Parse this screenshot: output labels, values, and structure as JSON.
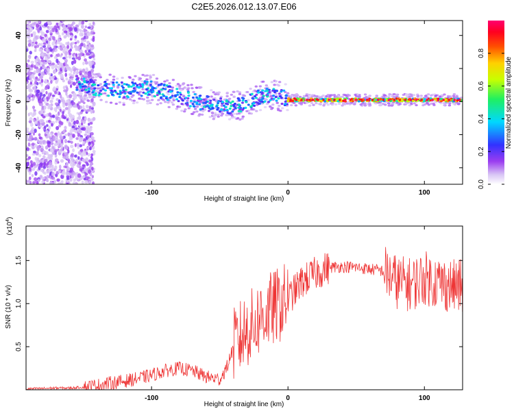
{
  "figure": {
    "title": "C2E5.2026.012.13.07.E06"
  },
  "chart_data": [
    {
      "type": "heatmap",
      "title": "C2E5.2026.012.13.07.E06",
      "xlabel": "Height of straight line (km)",
      "ylabel": "Frequency (Hz)",
      "xlim": [
        -192,
        128
      ],
      "ylim": [
        -50,
        49
      ],
      "xticks": [
        -100,
        0,
        100
      ],
      "yticks": [
        -40,
        -20,
        0,
        20,
        40
      ],
      "xtick_labels": [
        "-100",
        "0",
        "100"
      ],
      "ytick_labels": [
        "-40",
        "-20",
        "0",
        "20",
        "40"
      ],
      "ridge": {
        "x": [
          -155,
          -140,
          -120,
          -100,
          -90,
          -80,
          -70,
          -60,
          -50,
          -40,
          -30,
          -25,
          -20,
          -15,
          -10,
          -5,
          0,
          20,
          60,
          100,
          128
        ],
        "y": [
          11,
          8,
          7,
          8,
          6,
          3,
          1,
          -1,
          -2,
          -3,
          -1,
          1,
          3,
          4,
          4,
          3,
          1,
          1,
          1,
          1,
          1
        ]
      },
      "colorbar": {
        "label": "Normalized spectral amplitude",
        "range": [
          0,
          1
        ],
        "ticks": [
          0.0,
          0.2,
          0.4,
          0.6,
          0.8
        ],
        "tick_labels": [
          "0.0",
          "0.2",
          "0.4",
          "0.6",
          "0.8"
        ],
        "colors": [
          "#ffffff",
          "#c7a7f0",
          "#8a2be2",
          "#1e46ff",
          "#00e0ff",
          "#20ff40",
          "#ffff00",
          "#ff8000",
          "#ff0000",
          "#ff0060"
        ]
      }
    },
    {
      "type": "line",
      "xlabel": "Height of straight line (km)",
      "ylabel": "SNR (10 * v/v)",
      "multiplier_label": "(x10",
      "multiplier_exp": "4",
      "multiplier_close": ")",
      "xlim": [
        -192,
        128
      ],
      "ylim": [
        0,
        1.9
      ],
      "xticks": [
        -100,
        0,
        100
      ],
      "yticks": [
        0.5,
        1.0,
        1.5
      ],
      "xtick_labels": [
        "-100",
        "0",
        "100"
      ],
      "ytick_labels": [
        "0.5",
        "1.0",
        "1.5"
      ],
      "series": [
        {
          "name": "SNR",
          "color": "#ee3333",
          "x": [
            -192,
            -170,
            -160,
            -150,
            -140,
            -130,
            -120,
            -110,
            -100,
            -90,
            -80,
            -70,
            -60,
            -50,
            -45,
            -40,
            -35,
            -30,
            -25,
            -20,
            -15,
            -10,
            -5,
            0,
            5,
            10,
            20,
            30,
            40,
            50,
            60,
            70,
            80,
            90,
            100,
            110,
            120,
            128
          ],
          "y": [
            0.01,
            0.02,
            0.02,
            0.03,
            0.05,
            0.08,
            0.1,
            0.13,
            0.17,
            0.22,
            0.25,
            0.22,
            0.15,
            0.12,
            0.25,
            0.5,
            0.6,
            0.7,
            0.75,
            0.85,
            0.9,
            0.95,
            1.0,
            1.05,
            1.15,
            1.25,
            1.35,
            1.42,
            1.43,
            1.42,
            1.4,
            1.38,
            1.25,
            1.22,
            1.3,
            1.25,
            1.2,
            1.2
          ]
        }
      ]
    }
  ]
}
